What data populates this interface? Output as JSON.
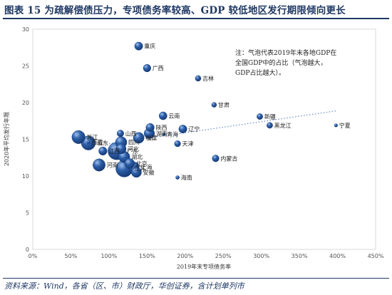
{
  "title": "图表 15 为疏解偿债压力，专项债务率较高、GDP 较低地区发行期限倾向更长",
  "source": "资料来源：Wind，各省（区、市）财政厅，华创证券，含计划单列市",
  "chart_data": {
    "type": "scatter",
    "xlabel": "2019年末专项债务率",
    "ylabel": "2020年平均发行年限",
    "xlim": [
      0,
      450
    ],
    "ylim": [
      0,
      30
    ],
    "x_ticks": [
      "0%",
      "50%",
      "100%",
      "150%",
      "200%",
      "250%",
      "300%",
      "350%",
      "400%",
      "450%"
    ],
    "y_ticks": [
      "0",
      "5",
      "10",
      "15",
      "20",
      "25",
      "30"
    ],
    "annotation": [
      "注：气泡代表2019年末各地GDP在",
      "全国GDP中的占比（气泡越大，",
      "GDP占比越大）。"
    ],
    "bubble_color": "#2e5fa8",
    "trend_color": "#6f94cc",
    "trendline": {
      "x": [
        100,
        400
      ],
      "y": [
        14.4,
        18.9
      ]
    },
    "points": [
      {
        "name": "重庆",
        "x": 139,
        "y": 27.7,
        "size": 2.4
      },
      {
        "name": "广西",
        "x": 150,
        "y": 24.7,
        "size": 2.1
      },
      {
        "name": "吉林",
        "x": 217,
        "y": 23.3,
        "size": 1.2
      },
      {
        "name": "甘肃",
        "x": 238,
        "y": 19.7,
        "size": 0.9
      },
      {
        "name": "云南",
        "x": 171,
        "y": 18.2,
        "size": 2.3
      },
      {
        "name": "新疆",
        "x": 298,
        "y": 18.1,
        "size": 1.3
      },
      {
        "name": "宁夏",
        "x": 398,
        "y": 16.9,
        "size": 0.4
      },
      {
        "name": "黑龙江",
        "x": 311,
        "y": 16.9,
        "size": 1.3
      },
      {
        "name": "陕西",
        "x": 154,
        "y": 16.6,
        "size": 2.5
      },
      {
        "name": "辽宁",
        "x": 197,
        "y": 16.4,
        "size": 2.4
      },
      {
        "name": "浙江",
        "x": 60,
        "y": 15.3,
        "size": 6.3
      },
      {
        "name": "西藏",
        "x": 73,
        "y": 14.6,
        "size": 0.2
      },
      {
        "name": "山西",
        "x": 115,
        "y": 15.8,
        "size": 1.7
      },
      {
        "name": "湖南",
        "x": 153,
        "y": 15.8,
        "size": 4.0
      },
      {
        "name": "青海",
        "x": 172,
        "y": 15.7,
        "size": 0.3
      },
      {
        "name": "山东",
        "x": 73,
        "y": 14.5,
        "size": 7.2
      },
      {
        "name": "四川",
        "x": 116,
        "y": 14.6,
        "size": 4.7
      },
      {
        "name": "福建",
        "x": 139,
        "y": 15.2,
        "size": 4.3
      },
      {
        "name": "天津",
        "x": 190,
        "y": 14.4,
        "size": 1.4
      },
      {
        "name": "河北",
        "x": 116,
        "y": 13.7,
        "size": 3.6
      },
      {
        "name": "江西",
        "x": 92,
        "y": 13.4,
        "size": 2.5
      },
      {
        "name": "广东",
        "x": 110,
        "y": 13.4,
        "size": 10.9
      },
      {
        "name": "湖北",
        "x": 120,
        "y": 12.6,
        "size": 4.6
      },
      {
        "name": "北京",
        "x": 127,
        "y": 11.7,
        "size": 3.6
      },
      {
        "name": "内蒙古",
        "x": 240,
        "y": 12.4,
        "size": 1.7
      },
      {
        "name": "河南",
        "x": 87,
        "y": 11.5,
        "size": 5.5
      },
      {
        "name": "上海",
        "x": 133,
        "y": 11.2,
        "size": 3.9
      },
      {
        "name": "江苏",
        "x": 120,
        "y": 11.0,
        "size": 10.1
      },
      {
        "name": "安徽",
        "x": 136,
        "y": 10.5,
        "size": 3.7
      },
      {
        "name": "海南",
        "x": 190,
        "y": 9.8,
        "size": 0.5
      }
    ]
  }
}
